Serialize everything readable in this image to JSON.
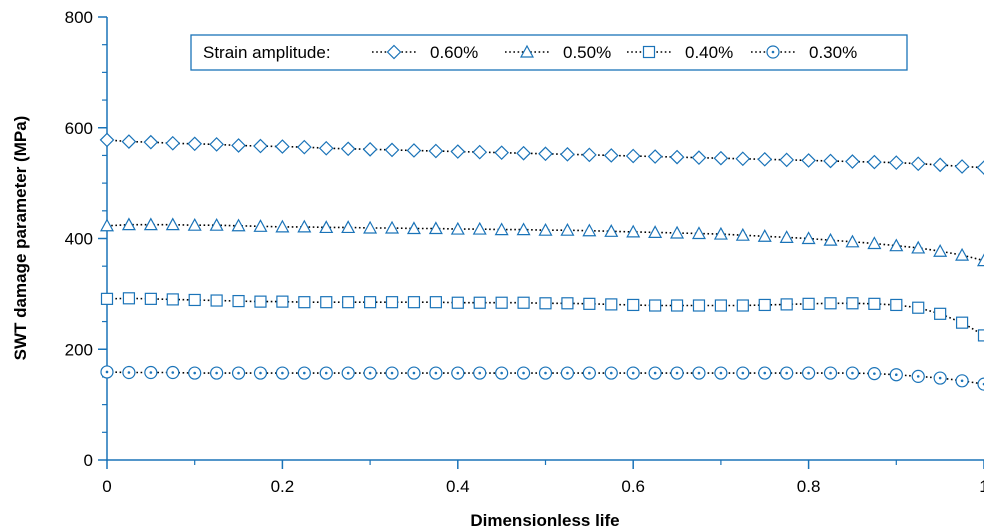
{
  "chart_data": {
    "type": "line",
    "title": "",
    "xlabel": "Dimensionless life",
    "ylabel": "SWT damage parameter (MPa)",
    "xlim": [
      0,
      1
    ],
    "ylim": [
      0,
      800
    ],
    "xticks": [
      0,
      0.2,
      0.4,
      0.6,
      0.8,
      1
    ],
    "xtick_labels": [
      "0",
      "0.2",
      "0.4",
      "0.6",
      "0.8",
      "1"
    ],
    "yticks": [
      0,
      200,
      400,
      600,
      800
    ],
    "ytick_labels": [
      "0",
      "200",
      "400",
      "600",
      "800"
    ],
    "grid": false,
    "legend": {
      "title": "Strain amplitude:",
      "placement": "top",
      "boxed": true
    },
    "x": [
      0,
      0.025,
      0.05,
      0.075,
      0.1,
      0.125,
      0.15,
      0.175,
      0.2,
      0.225,
      0.25,
      0.275,
      0.3,
      0.325,
      0.35,
      0.375,
      0.4,
      0.425,
      0.45,
      0.475,
      0.5,
      0.525,
      0.55,
      0.575,
      0.6,
      0.625,
      0.65,
      0.675,
      0.7,
      0.725,
      0.75,
      0.775,
      0.8,
      0.825,
      0.85,
      0.875,
      0.9,
      0.925,
      0.95,
      0.975,
      1
    ],
    "series": [
      {
        "name": "0.60%",
        "marker": "diamond",
        "color": "#1a73b8",
        "line_color": "#000000",
        "values": [
          578,
          575,
          574,
          572,
          571,
          570,
          568,
          567,
          566,
          565,
          563,
          562,
          561,
          560,
          559,
          558,
          557,
          556,
          555,
          554,
          553,
          552,
          551,
          550,
          549,
          548,
          547,
          546,
          545,
          544,
          543,
          542,
          541,
          540,
          539,
          538,
          537,
          535,
          533,
          530,
          528
        ]
      },
      {
        "name": "0.50%",
        "marker": "triangle",
        "color": "#1a73b8",
        "line_color": "#000000",
        "values": [
          423,
          425,
          425,
          425,
          424,
          424,
          423,
          422,
          421,
          421,
          420,
          420,
          419,
          419,
          418,
          418,
          417,
          417,
          416,
          416,
          415,
          415,
          414,
          413,
          412,
          411,
          410,
          409,
          408,
          406,
          404,
          402,
          400,
          397,
          394,
          391,
          387,
          383,
          377,
          370,
          360
        ]
      },
      {
        "name": "0.40%",
        "marker": "square",
        "color": "#1a73b8",
        "line_color": "#000000",
        "values": [
          291,
          292,
          291,
          290,
          289,
          288,
          287,
          286,
          286,
          285,
          285,
          285,
          285,
          285,
          285,
          285,
          284,
          284,
          284,
          284,
          283,
          283,
          282,
          281,
          280,
          279,
          279,
          279,
          279,
          279,
          280,
          281,
          282,
          283,
          283,
          282,
          280,
          275,
          264,
          248,
          225
        ]
      },
      {
        "name": "0.30%",
        "marker": "circle",
        "color": "#1a73b8",
        "line_color": "#000000",
        "values": [
          159,
          158,
          158,
          158,
          157,
          157,
          157,
          157,
          157,
          157,
          157,
          157,
          157,
          157,
          157,
          157,
          157,
          157,
          157,
          157,
          157,
          157,
          157,
          157,
          157,
          157,
          157,
          157,
          157,
          157,
          157,
          157,
          157,
          157,
          157,
          156,
          154,
          151,
          148,
          143,
          137
        ]
      }
    ],
    "colors": {
      "axis": "#1a73b8",
      "marker": "#1a73b8",
      "line": "#000000",
      "legend_border": "#1a73b8"
    }
  }
}
